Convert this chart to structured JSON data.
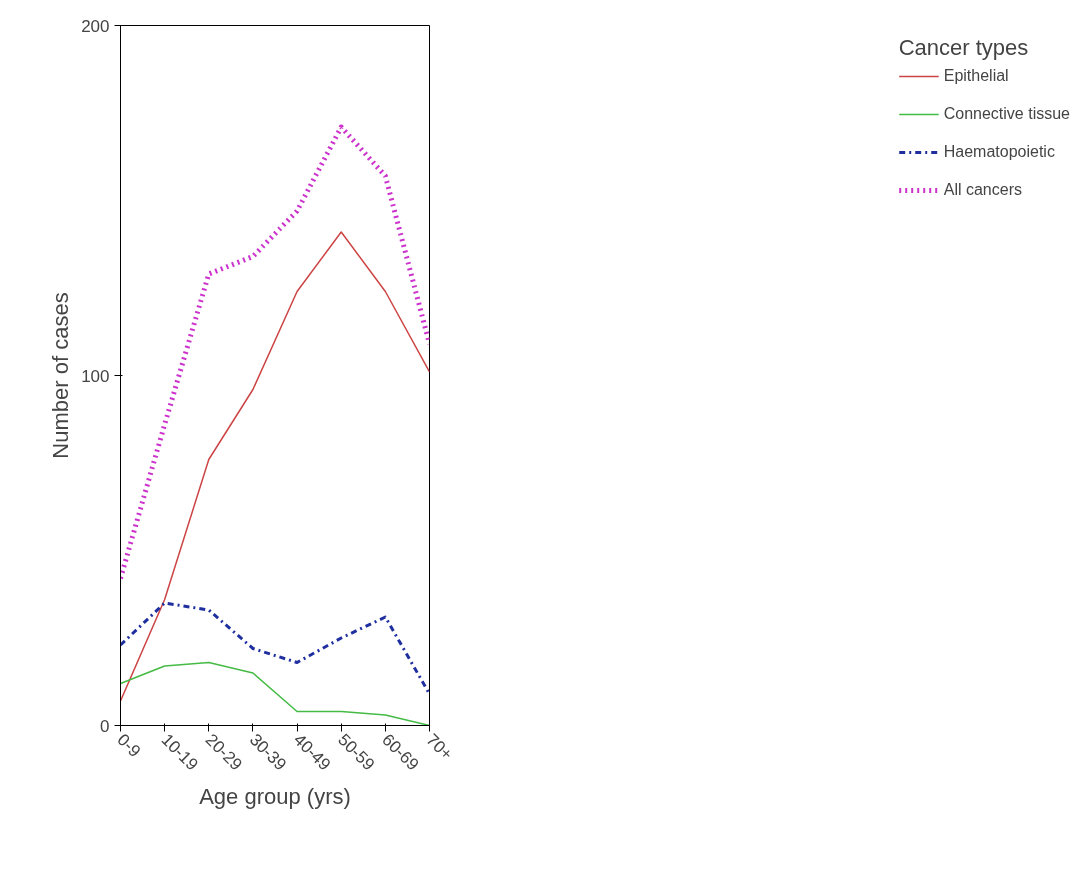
{
  "chart_data": {
    "type": "line",
    "xlabel": "Age group (yrs)",
    "ylabel": "Number of cases",
    "legend_title": "Cancer types",
    "categories": [
      "0-9",
      "10-19",
      "20-29",
      "30-39",
      "40-49",
      "50-59",
      "60-69",
      "70+"
    ],
    "series": [
      {
        "name": "Epithelial",
        "color": "#cc4444",
        "line_style": "solid",
        "values": [
          7,
          36,
          76,
          96,
          124,
          141,
          124,
          101
        ]
      },
      {
        "name": "Connective tissue",
        "color": "#44bb44",
        "line_style": "solid",
        "values": [
          12,
          17,
          18,
          15,
          4,
          4,
          3,
          0
        ]
      },
      {
        "name": "Haematopoietic",
        "color": "#1f2f9f",
        "line_style": "dashdot",
        "values": [
          23,
          35,
          33,
          22,
          18,
          25,
          31,
          9
        ]
      },
      {
        "name": "All cancers",
        "color": "#cc33cc",
        "line_style": "dotted",
        "values": [
          42,
          86,
          129,
          134,
          147,
          171,
          157,
          109
        ]
      }
    ],
    "ylim": [
      0,
      200
    ],
    "yticks": [
      0,
      100,
      200
    ],
    "grid": false,
    "legend": "right",
    "marker": "none"
  }
}
